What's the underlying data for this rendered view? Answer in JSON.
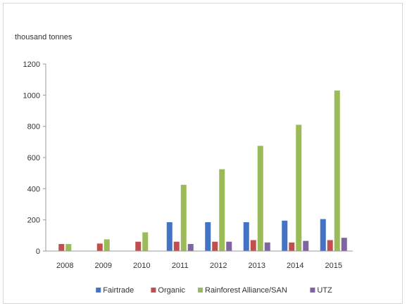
{
  "chart_data": {
    "type": "bar",
    "title": "",
    "unit_label": "thousand tonnes",
    "xlabel": "",
    "ylabel": "",
    "ylim": [
      0,
      1200
    ],
    "yticks": [
      0,
      200,
      400,
      600,
      800,
      1000,
      1200
    ],
    "grid": false,
    "legend_position": "bottom",
    "categories": [
      "2008",
      "2009",
      "2010",
      "2011",
      "2012",
      "2013",
      "2014",
      "2015"
    ],
    "series": [
      {
        "name": "Fairtrade",
        "color": "#4472c4",
        "values": [
          0,
          0,
          0,
          185,
          185,
          185,
          195,
          205
        ]
      },
      {
        "name": "Organic",
        "color": "#c0504d",
        "values": [
          45,
          48,
          60,
          60,
          60,
          70,
          55,
          70
        ]
      },
      {
        "name": "Rainforest Alliance/SAN",
        "color": "#9bbb59",
        "values": [
          45,
          75,
          120,
          425,
          525,
          675,
          810,
          1030
        ]
      },
      {
        "name": "UTZ",
        "color": "#8064a2",
        "values": [
          0,
          0,
          0,
          45,
          60,
          55,
          65,
          85
        ]
      }
    ]
  }
}
